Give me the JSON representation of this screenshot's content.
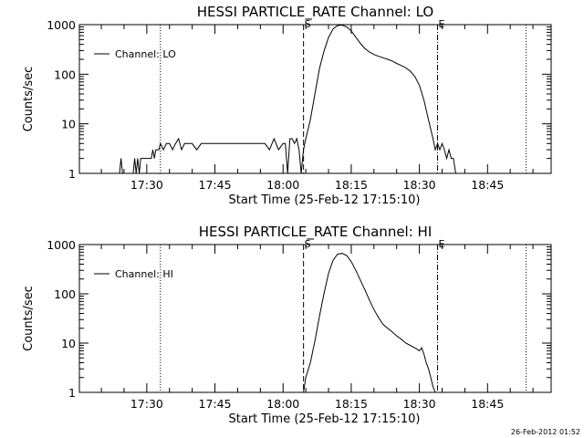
{
  "chart_data": [
    {
      "type": "line",
      "title": "HESSI PARTICLE_RATE Channel: LO",
      "xlabel": "Start Time (25-Feb-12 17:15:10)",
      "ylabel": "Counts/sec",
      "yscale": "log",
      "ylim": [
        1,
        1000
      ],
      "xlim": [
        "17:15:10",
        "18:59:00"
      ],
      "xticks": [
        "17:30",
        "17:45",
        "18:00",
        "18:15",
        "18:30",
        "18:45"
      ],
      "yticks": [
        "1",
        "10",
        "100",
        "1000"
      ],
      "legend": {
        "position": "top-left",
        "entries": [
          "Channel: LO"
        ]
      },
      "markers": [
        {
          "label": "S",
          "time": "18:04:30",
          "style": "dashed"
        },
        {
          "label": "E",
          "time": "18:34:00",
          "style": "dash-dot"
        }
      ],
      "vlines_dotted": [
        "17:33:00",
        "18:53:30"
      ],
      "series": [
        {
          "name": "Channel: LO",
          "x": [
            "17:24:00",
            "17:24:20",
            "17:24:40",
            "17:26:00",
            "17:27:00",
            "17:27:20",
            "17:27:40",
            "17:28:00",
            "17:28:20",
            "17:28:40",
            "17:29:00",
            "17:29:20",
            "17:29:40",
            "17:30:00",
            "17:30:20",
            "17:30:40",
            "17:31:00",
            "17:31:20",
            "17:31:40",
            "17:32:00",
            "17:32:20",
            "17:32:40",
            "17:33:00",
            "17:33:40",
            "17:34:20",
            "17:35:00",
            "17:35:40",
            "17:36:20",
            "17:37:00",
            "17:37:40",
            "17:38:20",
            "17:39:00",
            "17:40:00",
            "17:41:00",
            "17:42:00",
            "17:43:00",
            "17:44:00",
            "17:45:00",
            "17:46:00",
            "17:47:00",
            "17:48:00",
            "17:49:00",
            "17:50:00",
            "17:51:00",
            "17:52:00",
            "17:53:00",
            "17:54:00",
            "17:55:00",
            "17:56:00",
            "17:57:00",
            "17:58:00",
            "17:59:00",
            "18:00:00",
            "18:00:30",
            "18:01:00",
            "18:01:30",
            "18:02:00",
            "18:02:30",
            "18:03:00",
            "18:03:30",
            "18:04:00",
            "18:04:30",
            "18:05:00",
            "18:06:00",
            "18:07:00",
            "18:08:00",
            "18:09:00",
            "18:10:00",
            "18:11:00",
            "18:12:00",
            "18:13:00",
            "18:14:00",
            "18:15:00",
            "18:16:00",
            "18:17:00",
            "18:18:00",
            "18:19:00",
            "18:20:00",
            "18:21:00",
            "18:22:00",
            "18:23:00",
            "18:24:00",
            "18:25:00",
            "18:26:00",
            "18:27:00",
            "18:28:00",
            "18:29:00",
            "18:30:00",
            "18:31:00",
            "18:32:00",
            "18:33:00",
            "18:33:30",
            "18:34:00",
            "18:34:30",
            "18:35:00",
            "18:35:30",
            "18:36:00",
            "18:36:30",
            "18:37:00",
            "18:37:30",
            "18:38:00",
            "18:38:30",
            "18:39:00"
          ],
          "values": [
            1,
            2,
            1,
            1,
            1,
            2,
            1,
            2,
            1,
            2,
            2,
            2,
            2,
            2,
            2,
            2,
            2,
            3,
            2,
            3,
            3,
            3,
            4,
            3,
            4,
            4,
            3,
            4,
            5,
            3,
            4,
            4,
            4,
            3,
            4,
            4,
            4,
            4,
            4,
            4,
            4,
            4,
            4,
            4,
            4,
            4,
            4,
            4,
            4,
            3,
            5,
            3,
            4,
            4,
            1,
            5,
            5,
            4,
            5,
            3,
            1,
            3,
            5,
            12,
            40,
            130,
            290,
            550,
            820,
            960,
            980,
            900,
            750,
            560,
            420,
            330,
            280,
            250,
            230,
            215,
            200,
            185,
            165,
            150,
            135,
            115,
            90,
            60,
            30,
            12,
            5,
            3,
            4,
            3,
            4,
            3,
            2,
            3,
            2,
            2,
            1,
            1,
            1
          ]
        }
      ]
    },
    {
      "type": "line",
      "title": "HESSI PARTICLE_RATE Channel: HI",
      "xlabel": "Start Time (25-Feb-12 17:15:10)",
      "ylabel": "Counts/sec",
      "yscale": "log",
      "ylim": [
        1,
        1000
      ],
      "xlim": [
        "17:15:10",
        "18:59:00"
      ],
      "xticks": [
        "17:30",
        "17:45",
        "18:00",
        "18:15",
        "18:30",
        "18:45"
      ],
      "yticks": [
        "1",
        "10",
        "100",
        "1000"
      ],
      "legend": {
        "position": "top-left",
        "entries": [
          "Channel: HI"
        ]
      },
      "markers": [
        {
          "label": "S",
          "time": "18:04:30",
          "style": "dashed"
        },
        {
          "label": "E",
          "time": "18:34:00",
          "style": "dash-dot"
        }
      ],
      "vlines_dotted": [
        "17:33:00",
        "18:53:30"
      ],
      "series": [
        {
          "name": "Channel: HI",
          "x": [
            "18:04:30",
            "18:05:00",
            "18:06:00",
            "18:07:00",
            "18:08:00",
            "18:09:00",
            "18:10:00",
            "18:11:00",
            "18:12:00",
            "18:13:00",
            "18:14:00",
            "18:15:00",
            "18:16:00",
            "18:17:00",
            "18:18:00",
            "18:19:00",
            "18:20:00",
            "18:21:00",
            "18:22:00",
            "18:23:00",
            "18:24:00",
            "18:25:00",
            "18:26:00",
            "18:27:00",
            "18:28:00",
            "18:29:00",
            "18:30:00",
            "18:30:30",
            "18:31:00",
            "18:31:30",
            "18:32:00",
            "18:32:30",
            "18:33:00",
            "18:33:30"
          ],
          "values": [
            1,
            2,
            4,
            11,
            35,
            100,
            260,
            480,
            640,
            660,
            600,
            450,
            300,
            190,
            120,
            75,
            48,
            33,
            24,
            20,
            17,
            14,
            12,
            10,
            9,
            8,
            7,
            8,
            6,
            4,
            3,
            2,
            1.3,
            1
          ]
        }
      ]
    }
  ],
  "footer": {
    "timestamp": "26-Feb-2012 01:52"
  }
}
